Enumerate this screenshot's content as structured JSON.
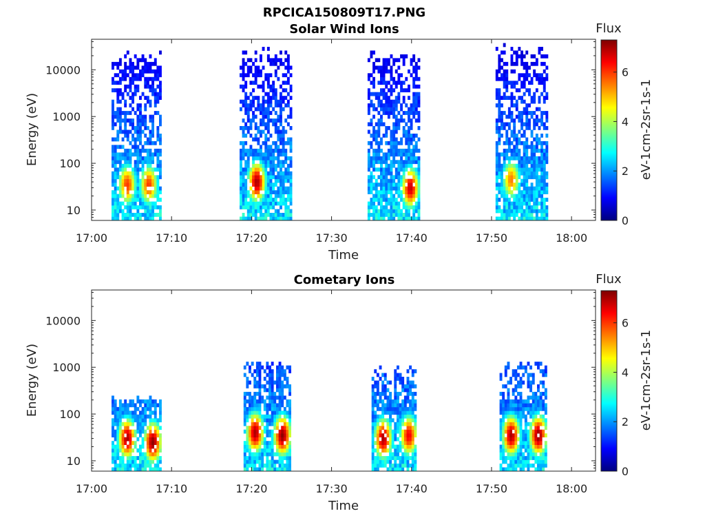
{
  "figure_title": "RPCICA150809T17.PNG",
  "colors": {
    "colormap": [
      "#00007f",
      "#0000ff",
      "#007fff",
      "#00ffff",
      "#7fff7f",
      "#ffff00",
      "#ff7f00",
      "#ff0000",
      "#7f0000"
    ]
  },
  "chart_data": [
    {
      "type": "heatmap",
      "title": "Solar Wind Ions",
      "xlabel": "Time",
      "ylabel": "Energy (eV)",
      "x_ticks": [
        "17:00",
        "17:10",
        "17:20",
        "17:30",
        "17:40",
        "17:50",
        "18:00"
      ],
      "y_ticks": [
        "10",
        "100",
        "1000",
        "10000"
      ],
      "y_scale": "log",
      "ylim": [
        6,
        45000
      ],
      "xlim_minutes": [
        0,
        63
      ],
      "colorbar": {
        "title": "Flux",
        "label": "eV-1cm-2sr-1s-1",
        "ticks": [
          "0",
          "2",
          "4",
          "6"
        ],
        "range": [
          0,
          7.3
        ]
      },
      "bursts": [
        {
          "start_min": 2.5,
          "end_min": 8.8,
          "max_energy_eV": 20000,
          "peaks": [
            {
              "time_min": 4.3,
              "energy_eV": 35,
              "flux": 6.0
            },
            {
              "time_min": 7.0,
              "energy_eV": 35,
              "flux": 6.0
            }
          ]
        },
        {
          "start_min": 18.5,
          "end_min": 25.0,
          "max_energy_eV": 25000,
          "peaks": [
            {
              "time_min": 20.5,
              "energy_eV": 40,
              "flux": 7.0
            }
          ]
        },
        {
          "start_min": 34.5,
          "end_min": 41.0,
          "max_energy_eV": 22000,
          "peaks": [
            {
              "time_min": 39.7,
              "energy_eV": 30,
              "flux": 6.8
            }
          ]
        },
        {
          "start_min": 50.5,
          "end_min": 57.0,
          "max_energy_eV": 30000,
          "peaks": [
            {
              "time_min": 52.3,
              "energy_eV": 45,
              "flux": 5.5
            }
          ]
        }
      ]
    },
    {
      "type": "heatmap",
      "title": "Cometary Ions",
      "xlabel": "Time",
      "ylabel": "Energy (eV)",
      "x_ticks": [
        "17:00",
        "17:10",
        "17:20",
        "17:30",
        "17:40",
        "17:50",
        "18:00"
      ],
      "y_ticks": [
        "10",
        "100",
        "1000",
        "10000"
      ],
      "y_scale": "log",
      "ylim": [
        6,
        45000
      ],
      "xlim_minutes": [
        0,
        63
      ],
      "colorbar": {
        "title": "Flux",
        "label": "eV-1cm-2sr-1s-1",
        "ticks": [
          "0",
          "2",
          "4",
          "6"
        ],
        "range": [
          0,
          7.3
        ]
      },
      "bursts": [
        {
          "start_min": 2.5,
          "end_min": 8.8,
          "max_energy_eV": 220,
          "peaks": [
            {
              "time_min": 4.3,
              "energy_eV": 30,
              "flux": 7.0
            },
            {
              "time_min": 7.5,
              "energy_eV": 25,
              "flux": 7.2
            }
          ]
        },
        {
          "start_min": 19.0,
          "end_min": 25.0,
          "max_energy_eV": 1300,
          "peaks": [
            {
              "time_min": 20.3,
              "energy_eV": 40,
              "flux": 7.0
            },
            {
              "time_min": 23.7,
              "energy_eV": 35,
              "flux": 7.2
            }
          ]
        },
        {
          "start_min": 35.0,
          "end_min": 40.5,
          "max_energy_eV": 900,
          "peaks": [
            {
              "time_min": 36.3,
              "energy_eV": 30,
              "flux": 7.0
            },
            {
              "time_min": 39.5,
              "energy_eV": 35,
              "flux": 6.5
            }
          ]
        },
        {
          "start_min": 51.0,
          "end_min": 57.0,
          "max_energy_eV": 1200,
          "peaks": [
            {
              "time_min": 52.3,
              "energy_eV": 35,
              "flux": 7.0
            },
            {
              "time_min": 55.7,
              "energy_eV": 35,
              "flux": 7.2
            }
          ]
        }
      ]
    }
  ]
}
